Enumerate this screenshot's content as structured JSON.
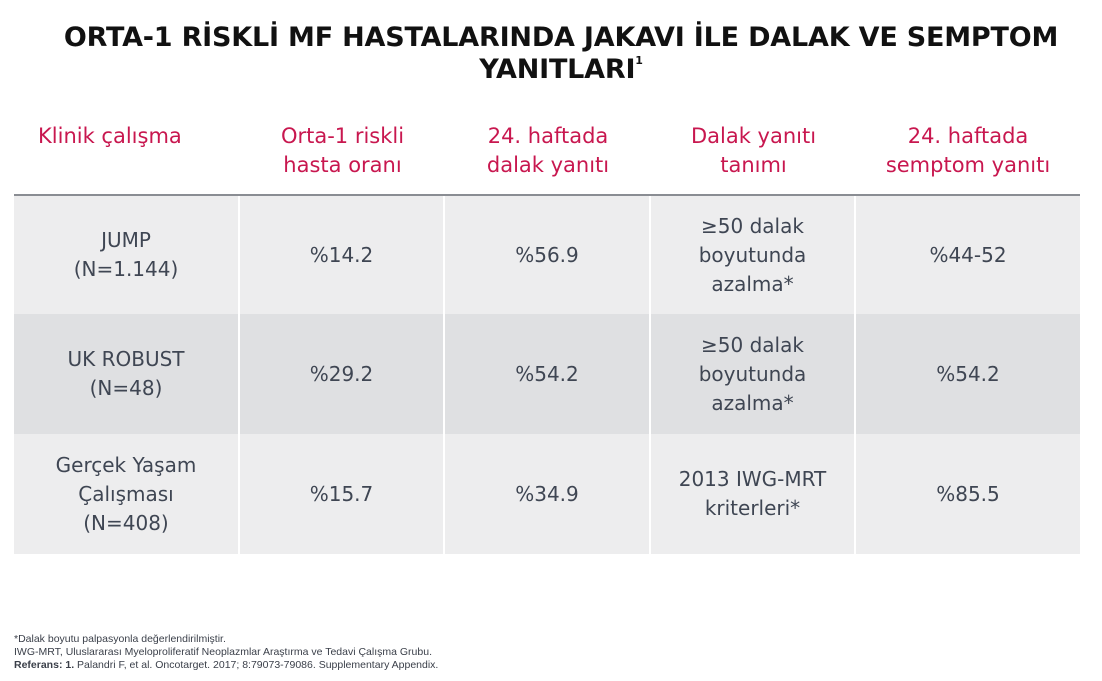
{
  "title": {
    "line1": "ORTA-1 RİSKLİ MF HASTALARINDA JAKAVI İLE DALAK VE SEMPTOM",
    "line2": "YANITLARI",
    "superscript": "1"
  },
  "table": {
    "headers": [
      "Klinik çalışma",
      "Orta-1 riskli\nhasta oranı",
      "24. haftada\ndalak yanıtı",
      "Dalak yanıtı\ntanımı",
      "24. haftada\nsemptom yanıtı"
    ],
    "rows": [
      [
        "JUMP\n(N=1.144)",
        "%14.2",
        "%56.9",
        "≥50 dalak\nboyutunda\nazalma*",
        "%44-52"
      ],
      [
        "UK ROBUST\n(N=48)",
        "%29.2",
        "%54.2",
        "≥50 dalak\nboyutunda\nazalma*",
        "%54.2"
      ],
      [
        "Gerçek Yaşam\nÇalışması\n(N=408)",
        "%15.7",
        "%34.9",
        "2013 IWG-MRT\nkriterleri*",
        "%85.5"
      ]
    ]
  },
  "footnotes": {
    "note1": "*Dalak boyutu palpasyonla değerlendirilmiştir.",
    "note2": "IWG-MRT, Uluslararası Myeloproliferatif Neoplazmlar Araştırma ve Tedavi Çalışma Grubu.",
    "ref_label": "Referans: 1.",
    "ref_text": " Palandri F, et al. Oncotarget. 2017; 8:79073-79086. Supplementary Appendix."
  },
  "colors": {
    "header_text": "#c8174f",
    "title_text": "#111111",
    "row_light": "#ededee",
    "row_dark": "#dfe0e2",
    "cell_text": "#3f4653"
  }
}
